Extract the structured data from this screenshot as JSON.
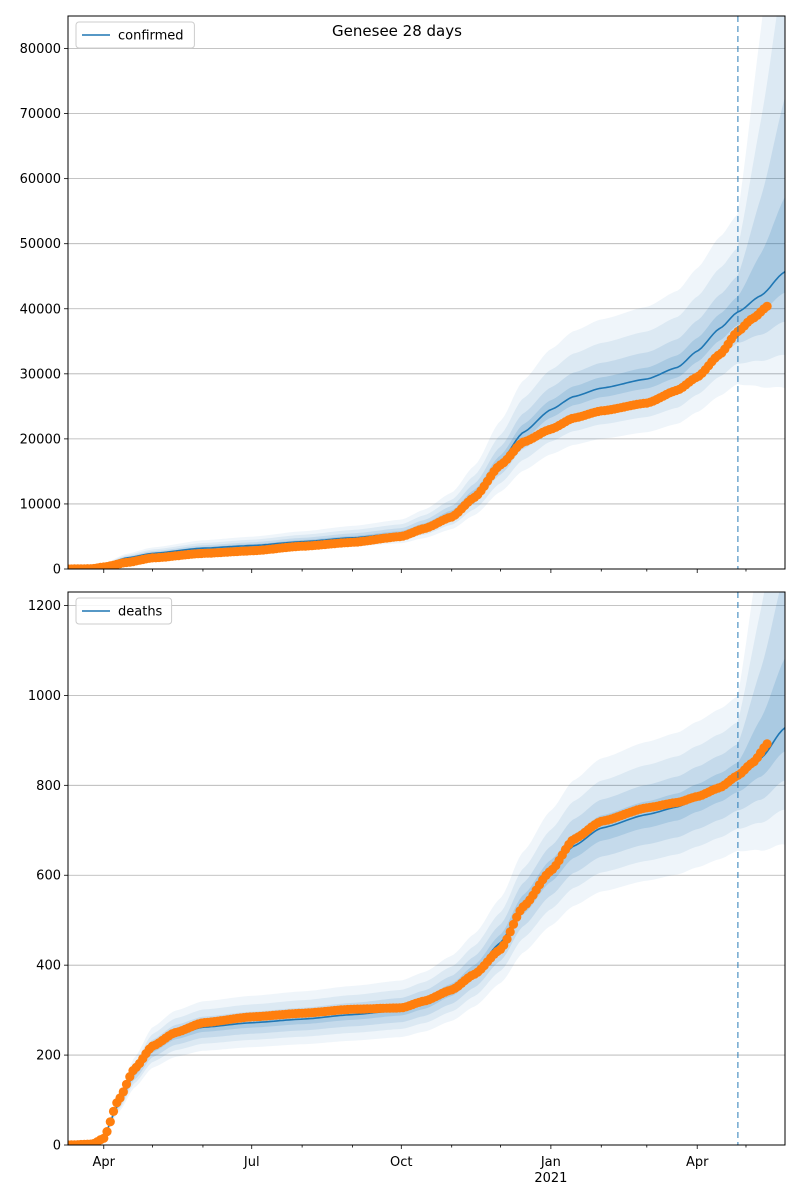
{
  "chart_data": [
    {
      "type": "line",
      "title": "Genesee 28 days",
      "legend": "confirmed",
      "legend_position": "top-left",
      "grid": "y",
      "ylim": [
        0,
        85000
      ],
      "yticks": [
        0,
        10000,
        20000,
        30000,
        40000,
        50000,
        60000,
        70000,
        80000
      ],
      "xlim": [
        "2020-03-10",
        "2021-05-25"
      ],
      "vline_date": "2021-04-26",
      "series": [
        {
          "name": "confirmed",
          "kind": "model-mean-with-bands",
          "color": "#1f77b4",
          "knots": [
            [
              "2020-03-10",
              0
            ],
            [
              "2020-03-25",
              80
            ],
            [
              "2020-04-01",
              600
            ],
            [
              "2020-04-15",
              1700
            ],
            [
              "2020-05-01",
              2400
            ],
            [
              "2020-06-01",
              3200
            ],
            [
              "2020-07-01",
              3600
            ],
            [
              "2020-08-01",
              4200
            ],
            [
              "2020-09-01",
              4800
            ],
            [
              "2020-10-01",
              5500
            ],
            [
              "2020-10-15",
              6600
            ],
            [
              "2020-11-01",
              8500
            ],
            [
              "2020-11-15",
              11500
            ],
            [
              "2020-12-01",
              16500
            ],
            [
              "2020-12-15",
              21000
            ],
            [
              "2021-01-01",
              24500
            ],
            [
              "2021-01-15",
              26500
            ],
            [
              "2021-02-01",
              27800
            ],
            [
              "2021-03-01",
              29200
            ],
            [
              "2021-03-20",
              31000
            ],
            [
              "2021-04-01",
              33500
            ],
            [
              "2021-04-15",
              37000
            ],
            [
              "2021-04-26",
              39500
            ],
            [
              "2021-05-10",
              42000
            ],
            [
              "2021-05-25",
              45700
            ]
          ],
          "bands": [
            {
              "lower": 0.95,
              "upper": 1.06,
              "opacity": 0.16
            },
            {
              "lower": 0.88,
              "upper": 1.14,
              "opacity": 0.12
            },
            {
              "lower": 0.8,
              "upper": 1.25,
              "opacity": 0.09
            },
            {
              "lower": 0.72,
              "upper": 1.38,
              "opacity": 0.07
            }
          ]
        },
        {
          "name": "observed",
          "kind": "points",
          "color": "#ff7f0e",
          "start": "2020-03-10",
          "end": "2021-05-15",
          "knots": [
            [
              "2020-03-10",
              0
            ],
            [
              "2020-03-25",
              50
            ],
            [
              "2020-04-01",
              300
            ],
            [
              "2020-04-15",
              1000
            ],
            [
              "2020-05-01",
              1700
            ],
            [
              "2020-06-01",
              2400
            ],
            [
              "2020-07-01",
              2800
            ],
            [
              "2020-08-01",
              3500
            ],
            [
              "2020-09-01",
              4100
            ],
            [
              "2020-10-01",
              5000
            ],
            [
              "2020-10-15",
              6200
            ],
            [
              "2020-11-01",
              8000
            ],
            [
              "2020-11-15",
              11000
            ],
            [
              "2020-12-01",
              16000
            ],
            [
              "2020-12-15",
              19500
            ],
            [
              "2021-01-01",
              21500
            ],
            [
              "2021-01-15",
              23200
            ],
            [
              "2021-02-01",
              24300
            ],
            [
              "2021-03-01",
              25500
            ],
            [
              "2021-03-20",
              27500
            ],
            [
              "2021-04-01",
              29500
            ],
            [
              "2021-04-15",
              33000
            ],
            [
              "2021-04-26",
              36500
            ],
            [
              "2021-05-05",
              38500
            ],
            [
              "2021-05-15",
              40500
            ]
          ]
        }
      ]
    },
    {
      "type": "line",
      "legend": "deaths",
      "legend_position": "top-left",
      "grid": "y",
      "ylim": [
        0,
        1230
      ],
      "yticks": [
        0,
        200,
        400,
        600,
        800,
        1000,
        1200
      ],
      "xlim": [
        "2020-03-10",
        "2021-05-25"
      ],
      "xticks": [
        {
          "date": "2020-04-01",
          "label": "Apr"
        },
        {
          "date": "2020-07-01",
          "label": "Jul"
        },
        {
          "date": "2020-10-01",
          "label": "Oct"
        },
        {
          "date": "2021-01-01",
          "label": "Jan",
          "sublabel": "2021"
        },
        {
          "date": "2021-04-01",
          "label": "Apr"
        }
      ],
      "vline_date": "2021-04-26",
      "series": [
        {
          "name": "deaths",
          "kind": "model-mean-with-bands",
          "color": "#1f77b4",
          "knots": [
            [
              "2020-03-10",
              0
            ],
            [
              "2020-03-25",
              5
            ],
            [
              "2020-04-01",
              20
            ],
            [
              "2020-04-10",
              90
            ],
            [
              "2020-04-20",
              160
            ],
            [
              "2020-05-01",
              215
            ],
            [
              "2020-05-15",
              245
            ],
            [
              "2020-06-01",
              262
            ],
            [
              "2020-07-01",
              272
            ],
            [
              "2020-08-01",
              280
            ],
            [
              "2020-09-01",
              290
            ],
            [
              "2020-10-01",
              300
            ],
            [
              "2020-10-15",
              315
            ],
            [
              "2020-11-01",
              345
            ],
            [
              "2020-11-15",
              385
            ],
            [
              "2020-12-01",
              450
            ],
            [
              "2020-12-15",
              535
            ],
            [
              "2021-01-01",
              610
            ],
            [
              "2021-01-15",
              665
            ],
            [
              "2021-02-01",
              705
            ],
            [
              "2021-03-01",
              735
            ],
            [
              "2021-03-20",
              752
            ],
            [
              "2021-04-01",
              772
            ],
            [
              "2021-04-15",
              795
            ],
            [
              "2021-04-26",
              818
            ],
            [
              "2021-05-10",
              860
            ],
            [
              "2021-05-25",
              928
            ]
          ],
          "bands": [
            {
              "lower": 0.96,
              "upper": 1.04,
              "opacity": 0.16
            },
            {
              "lower": 0.91,
              "upper": 1.09,
              "opacity": 0.12
            },
            {
              "lower": 0.86,
              "upper": 1.15,
              "opacity": 0.09
            },
            {
              "lower": 0.8,
              "upper": 1.22,
              "opacity": 0.07
            }
          ]
        },
        {
          "name": "observed",
          "kind": "points",
          "color": "#ff7f0e",
          "start": "2020-03-10",
          "end": "2021-05-15",
          "knots": [
            [
              "2020-03-10",
              0
            ],
            [
              "2020-03-25",
              2
            ],
            [
              "2020-04-01",
              15
            ],
            [
              "2020-04-10",
              100
            ],
            [
              "2020-04-20",
              170
            ],
            [
              "2020-05-01",
              220
            ],
            [
              "2020-05-15",
              250
            ],
            [
              "2020-06-01",
              272
            ],
            [
              "2020-07-01",
              285
            ],
            [
              "2020-08-01",
              293
            ],
            [
              "2020-09-01",
              302
            ],
            [
              "2020-10-01",
              305
            ],
            [
              "2020-10-15",
              320
            ],
            [
              "2020-11-01",
              345
            ],
            [
              "2020-11-15",
              380
            ],
            [
              "2020-12-01",
              435
            ],
            [
              "2020-12-15",
              530
            ],
            [
              "2021-01-01",
              610
            ],
            [
              "2021-01-15",
              680
            ],
            [
              "2021-02-01",
              720
            ],
            [
              "2021-03-01",
              750
            ],
            [
              "2021-03-20",
              762
            ],
            [
              "2021-04-01",
              775
            ],
            [
              "2021-04-15",
              795
            ],
            [
              "2021-04-26",
              822
            ],
            [
              "2021-05-05",
              850
            ],
            [
              "2021-05-15",
              895
            ]
          ]
        }
      ]
    }
  ]
}
